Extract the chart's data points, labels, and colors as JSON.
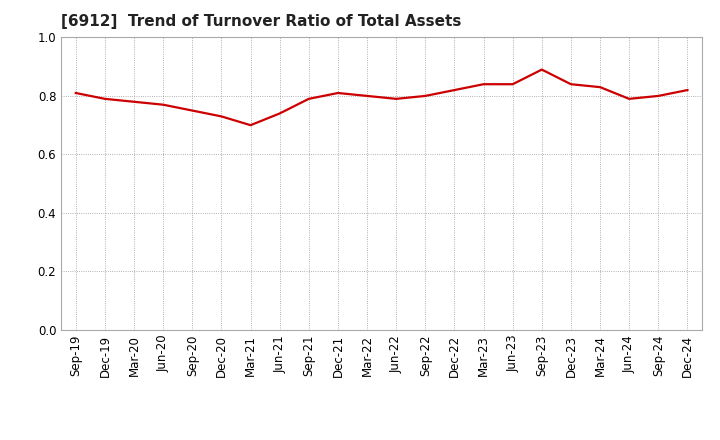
{
  "title": "[6912]  Trend of Turnover Ratio of Total Assets",
  "labels": [
    "Sep-19",
    "Dec-19",
    "Mar-20",
    "Jun-20",
    "Sep-20",
    "Dec-20",
    "Mar-21",
    "Jun-21",
    "Sep-21",
    "Dec-21",
    "Mar-22",
    "Jun-22",
    "Sep-22",
    "Dec-22",
    "Mar-23",
    "Jun-23",
    "Sep-23",
    "Dec-23",
    "Mar-24",
    "Jun-24",
    "Sep-24",
    "Dec-24"
  ],
  "values": [
    0.81,
    0.79,
    0.78,
    0.77,
    0.75,
    0.73,
    0.7,
    0.74,
    0.79,
    0.81,
    0.8,
    0.79,
    0.8,
    0.82,
    0.84,
    0.84,
    0.89,
    0.84,
    0.83,
    0.79,
    0.8,
    0.82
  ],
  "line_color": "#cc0000",
  "line_width": 1.6,
  "ylim": [
    0.0,
    1.0
  ],
  "yticks": [
    0.0,
    0.2,
    0.4,
    0.6,
    0.8,
    1.0
  ],
  "background_color": "#ffffff",
  "grid_color": "#999999",
  "title_fontsize": 11,
  "tick_fontsize": 8.5,
  "title_color": "#222222"
}
